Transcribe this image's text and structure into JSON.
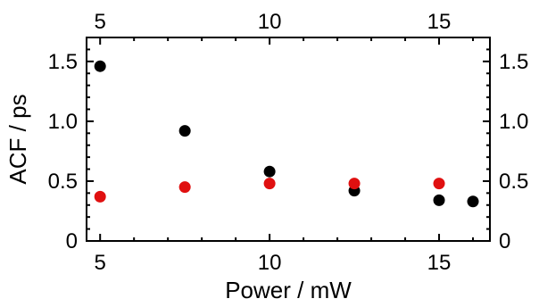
{
  "chart_data": {
    "type": "scatter",
    "title": "",
    "xlabel": "Power / mW",
    "ylabel": "ACF / ps",
    "xlim": [
      4.6,
      16.5
    ],
    "ylim": [
      0,
      1.7
    ],
    "x_ticks": [
      5,
      10,
      15
    ],
    "y_ticks": [
      0,
      0.5,
      1.0,
      1.5
    ],
    "x_tick_labels": [
      "5",
      "10",
      "15"
    ],
    "y_tick_labels": [
      "0",
      "0.5",
      "1.0",
      "1.5"
    ],
    "mirror_axes": true,
    "grid": false,
    "series": [
      {
        "color": "#000000",
        "points": [
          {
            "x": 5,
            "y": 1.46
          },
          {
            "x": 7.5,
            "y": 0.92
          },
          {
            "x": 10,
            "y": 0.58
          },
          {
            "x": 12.5,
            "y": 0.42
          },
          {
            "x": 15,
            "y": 0.34
          },
          {
            "x": 16,
            "y": 0.33
          }
        ]
      },
      {
        "color": "#e01010",
        "points": [
          {
            "x": 5,
            "y": 0.37
          },
          {
            "x": 7.5,
            "y": 0.45
          },
          {
            "x": 10,
            "y": 0.48
          },
          {
            "x": 12.5,
            "y": 0.48
          },
          {
            "x": 15,
            "y": 0.48
          }
        ]
      }
    ]
  }
}
